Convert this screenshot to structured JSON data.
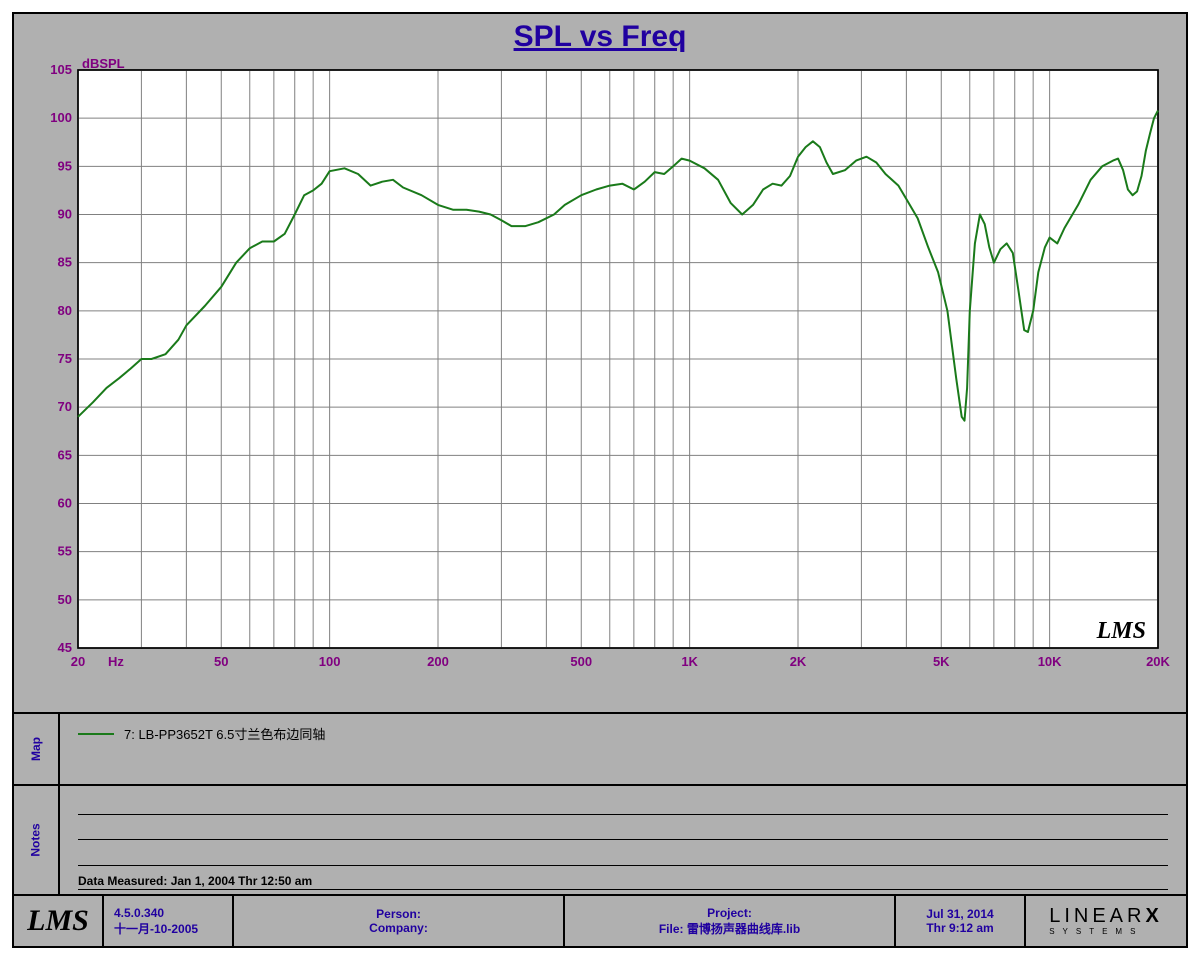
{
  "chart": {
    "type": "line",
    "title": "SPL vs Freq",
    "title_color": "#2000a0",
    "plot_bg": "#ffffff",
    "panel_bg": "#b0b0b0",
    "grid_color": "#808080",
    "axis_label_color": "#800080",
    "watermark": "LMS",
    "x": {
      "label": "Hz",
      "scale": "log",
      "min": 20,
      "max": 20000,
      "ticks": [
        20,
        50,
        100,
        200,
        500,
        1000,
        2000,
        5000,
        10000,
        20000
      ],
      "tick_labels": [
        "20",
        "50",
        "100",
        "200",
        "500",
        "1K",
        "2K",
        "5K",
        "10K",
        "20K"
      ]
    },
    "y": {
      "label": "dBSPL",
      "scale": "linear",
      "min": 45,
      "max": 105,
      "step": 5,
      "ticks": [
        45,
        50,
        55,
        60,
        65,
        70,
        75,
        80,
        85,
        90,
        95,
        100,
        105
      ]
    },
    "series": [
      {
        "name": "7: LB-PP3652T 6.5寸兰色布边同轴",
        "color": "#1a7a1a",
        "line_width": 2,
        "points": [
          [
            20,
            69
          ],
          [
            22,
            70.5
          ],
          [
            24,
            72
          ],
          [
            26,
            73
          ],
          [
            28,
            74
          ],
          [
            30,
            75
          ],
          [
            32,
            75
          ],
          [
            35,
            75.5
          ],
          [
            38,
            77
          ],
          [
            40,
            78.5
          ],
          [
            45,
            80.5
          ],
          [
            50,
            82.5
          ],
          [
            55,
            85
          ],
          [
            60,
            86.5
          ],
          [
            65,
            87.2
          ],
          [
            70,
            87.2
          ],
          [
            75,
            88
          ],
          [
            80,
            90
          ],
          [
            85,
            92
          ],
          [
            90,
            92.5
          ],
          [
            95,
            93.2
          ],
          [
            100,
            94.5
          ],
          [
            110,
            94.8
          ],
          [
            120,
            94.2
          ],
          [
            130,
            93
          ],
          [
            140,
            93.4
          ],
          [
            150,
            93.6
          ],
          [
            160,
            92.8
          ],
          [
            180,
            92
          ],
          [
            200,
            91
          ],
          [
            220,
            90.5
          ],
          [
            240,
            90.5
          ],
          [
            260,
            90.3
          ],
          [
            280,
            90
          ],
          [
            300,
            89.4
          ],
          [
            320,
            88.8
          ],
          [
            350,
            88.8
          ],
          [
            380,
            89.2
          ],
          [
            420,
            90
          ],
          [
            450,
            91
          ],
          [
            500,
            92
          ],
          [
            550,
            92.6
          ],
          [
            600,
            93
          ],
          [
            650,
            93.2
          ],
          [
            700,
            92.6
          ],
          [
            750,
            93.4
          ],
          [
            800,
            94.4
          ],
          [
            850,
            94.2
          ],
          [
            900,
            95
          ],
          [
            950,
            95.8
          ],
          [
            1000,
            95.6
          ],
          [
            1100,
            94.8
          ],
          [
            1200,
            93.6
          ],
          [
            1300,
            91.2
          ],
          [
            1400,
            90
          ],
          [
            1500,
            91
          ],
          [
            1600,
            92.6
          ],
          [
            1700,
            93.2
          ],
          [
            1800,
            93
          ],
          [
            1900,
            94
          ],
          [
            2000,
            96
          ],
          [
            2100,
            97
          ],
          [
            2200,
            97.6
          ],
          [
            2300,
            97
          ],
          [
            2400,
            95.4
          ],
          [
            2500,
            94.2
          ],
          [
            2700,
            94.6
          ],
          [
            2900,
            95.6
          ],
          [
            3100,
            96
          ],
          [
            3300,
            95.4
          ],
          [
            3500,
            94.2
          ],
          [
            3800,
            93
          ],
          [
            4000,
            91.6
          ],
          [
            4300,
            89.6
          ],
          [
            4600,
            86.6
          ],
          [
            4900,
            84
          ],
          [
            5200,
            80
          ],
          [
            5500,
            73
          ],
          [
            5700,
            69
          ],
          [
            5800,
            68.6
          ],
          [
            5900,
            72
          ],
          [
            6000,
            80
          ],
          [
            6200,
            87
          ],
          [
            6400,
            90
          ],
          [
            6600,
            89
          ],
          [
            6800,
            86.6
          ],
          [
            7000,
            85
          ],
          [
            7300,
            86.4
          ],
          [
            7600,
            87
          ],
          [
            7900,
            86
          ],
          [
            8200,
            82
          ],
          [
            8500,
            78
          ],
          [
            8700,
            77.8
          ],
          [
            9000,
            80
          ],
          [
            9300,
            84
          ],
          [
            9700,
            86.6
          ],
          [
            10000,
            87.6
          ],
          [
            10500,
            87
          ],
          [
            11000,
            88.6
          ],
          [
            12000,
            91
          ],
          [
            13000,
            93.6
          ],
          [
            14000,
            95
          ],
          [
            15000,
            95.6
          ],
          [
            15500,
            95.8
          ],
          [
            16000,
            94.6
          ],
          [
            16500,
            92.6
          ],
          [
            17000,
            92
          ],
          [
            17500,
            92.4
          ],
          [
            18000,
            94
          ],
          [
            18500,
            96.6
          ],
          [
            19000,
            98.4
          ],
          [
            19500,
            100
          ],
          [
            20000,
            100.8
          ]
        ]
      }
    ]
  },
  "legend": {
    "tab": "Map",
    "items": [
      {
        "label": "7: LB-PP3652T 6.5寸兰色布边同轴",
        "color": "#1a7a1a"
      }
    ]
  },
  "notes": {
    "tab": "Notes",
    "blank_lines": 3,
    "measured": "Data Measured: Jan  1, 2004  Thr 12:50 am"
  },
  "footer": {
    "version": "4.5.0.340",
    "build_date": "十一月-10-2005",
    "person_label": "Person:",
    "company_label": "Company:",
    "project_label": "Project:",
    "file_label": "File: 雷博扬声器曲线库.lib",
    "date": "Jul 31, 2014",
    "time": "Thr  9:12 am",
    "logo_left": "LMS",
    "logo_right_top": "LINEAR",
    "logo_right_x": "X",
    "logo_right_bottom": "SYSTEMS"
  }
}
